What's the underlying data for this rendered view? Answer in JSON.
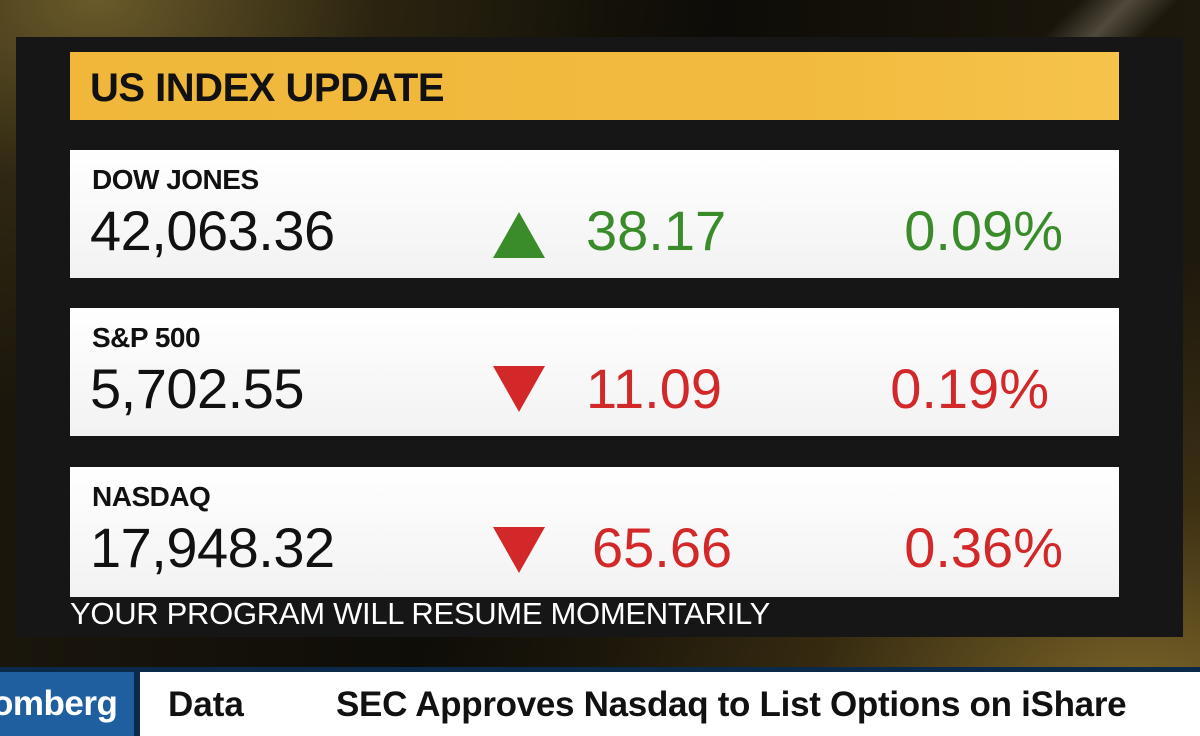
{
  "header": {
    "title": "US INDEX UPDATE"
  },
  "indices": [
    {
      "name": "DOW JONES",
      "value": "42,063.36",
      "direction": "up-arrow-icon",
      "change": "38.17",
      "percent": "0.09%"
    },
    {
      "name": "S&P 500",
      "value": "5,702.55",
      "direction": "down-arrow-icon",
      "change": "11.09",
      "percent": "0.19%"
    },
    {
      "name": "NASDAQ",
      "value": "17,948.32",
      "direction": "down-arrow-icon",
      "change": "65.66",
      "percent": "0.36%"
    }
  ],
  "colors": {
    "up": "#3a8b2a",
    "down": "#d3282a",
    "header": "#f2bb3f"
  },
  "footer_message": "YOUR PROGRAM WILL RESUME MOMENTARILY",
  "ticker": {
    "brand": "omberg",
    "label": "Data",
    "headline": "SEC Approves Nasdaq to  List Options on iShare"
  }
}
